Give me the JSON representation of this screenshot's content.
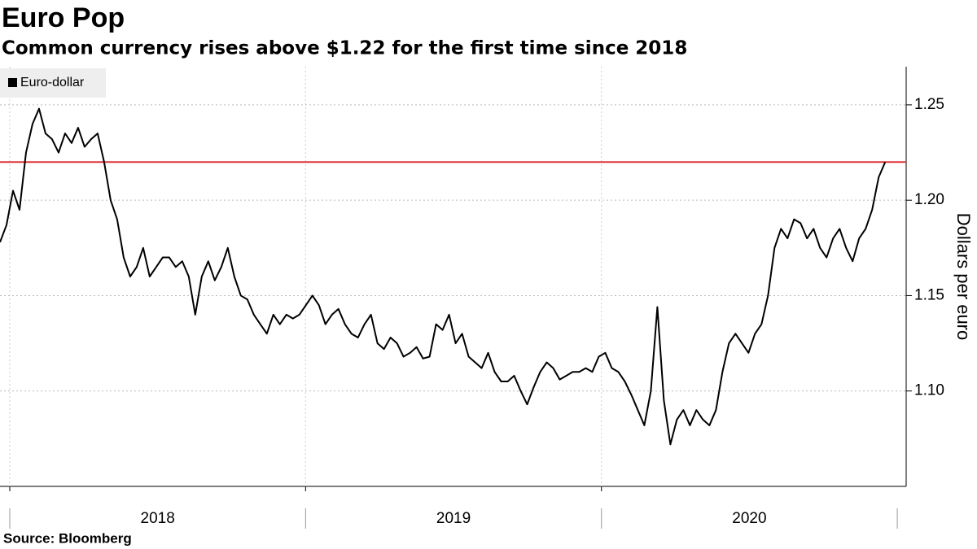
{
  "chart_data": {
    "type": "line",
    "title": "Euro Pop",
    "subtitle": "Common currency rises above $1.22 for the first time since 2018",
    "source": "Source: Bloomberg",
    "y_label": "Dollars per euro",
    "legend": "upper left",
    "grid": true,
    "xlim": [
      2017.967,
      2021.03
    ],
    "ylim": [
      1.05,
      1.27
    ],
    "yticks": [
      {
        "value": 1.1,
        "label": "1.10"
      },
      1.15,
      {
        "value": 1.2,
        "label": "1.20"
      },
      1.25
    ],
    "xticks": [
      {
        "value": 2018,
        "label": "2018"
      },
      {
        "value": 2019,
        "label": "2019"
      },
      {
        "value": 2020,
        "label": "2020"
      }
    ],
    "reference_line": {
      "value": 1.22,
      "color": "#e0353b"
    },
    "x": [
      2017.967,
      2017.989,
      2018.011,
      2018.033,
      2018.055,
      2018.077,
      2018.099,
      2018.121,
      2018.143,
      2018.165,
      2018.187,
      2018.209,
      2018.231,
      2018.253,
      2018.275,
      2018.297,
      2018.319,
      2018.341,
      2018.363,
      2018.385,
      2018.407,
      2018.429,
      2018.451,
      2018.473,
      2018.495,
      2018.517,
      2018.539,
      2018.561,
      2018.583,
      2018.605,
      2018.627,
      2018.649,
      2018.671,
      2018.693,
      2018.715,
      2018.737,
      2018.759,
      2018.781,
      2018.803,
      2018.825,
      2018.847,
      2018.869,
      2018.891,
      2018.913,
      2018.935,
      2018.957,
      2018.979,
      2019.001,
      2019.023,
      2019.045,
      2019.067,
      2019.089,
      2019.111,
      2019.133,
      2019.155,
      2019.177,
      2019.199,
      2019.221,
      2019.243,
      2019.265,
      2019.287,
      2019.309,
      2019.331,
      2019.353,
      2019.375,
      2019.397,
      2019.419,
      2019.441,
      2019.463,
      2019.485,
      2019.507,
      2019.529,
      2019.551,
      2019.573,
      2019.595,
      2019.617,
      2019.639,
      2019.661,
      2019.683,
      2019.705,
      2019.727,
      2019.749,
      2019.771,
      2019.793,
      2019.815,
      2019.837,
      2019.859,
      2019.881,
      2019.903,
      2019.925,
      2019.947,
      2019.969,
      2019.991,
      2020.013,
      2020.035,
      2020.057,
      2020.079,
      2020.101,
      2020.123,
      2020.145,
      2020.167,
      2020.189,
      2020.211,
      2020.233,
      2020.255,
      2020.277,
      2020.299,
      2020.321,
      2020.343,
      2020.365,
      2020.387,
      2020.409,
      2020.431,
      2020.453,
      2020.475,
      2020.497,
      2020.519,
      2020.541,
      2020.563,
      2020.585,
      2020.607,
      2020.629,
      2020.651,
      2020.673,
      2020.695,
      2020.717,
      2020.739,
      2020.761,
      2020.783,
      2020.805,
      2020.827,
      2020.849,
      2020.871,
      2020.893,
      2020.915,
      2020.937,
      2020.959
    ],
    "series": [
      {
        "name": "Euro-dollar",
        "color": "#000000",
        "values": [
          1.178,
          1.187,
          1.205,
          1.195,
          1.225,
          1.24,
          1.248,
          1.235,
          1.232,
          1.225,
          1.235,
          1.23,
          1.238,
          1.228,
          1.232,
          1.235,
          1.22,
          1.2,
          1.19,
          1.17,
          1.16,
          1.165,
          1.175,
          1.16,
          1.165,
          1.17,
          1.17,
          1.165,
          1.168,
          1.16,
          1.14,
          1.16,
          1.168,
          1.158,
          1.165,
          1.175,
          1.16,
          1.15,
          1.148,
          1.14,
          1.135,
          1.13,
          1.14,
          1.135,
          1.14,
          1.138,
          1.14,
          1.145,
          1.15,
          1.145,
          1.135,
          1.14,
          1.143,
          1.135,
          1.13,
          1.128,
          1.135,
          1.14,
          1.125,
          1.122,
          1.128,
          1.125,
          1.118,
          1.12,
          1.123,
          1.117,
          1.118,
          1.135,
          1.132,
          1.14,
          1.125,
          1.13,
          1.118,
          1.115,
          1.112,
          1.12,
          1.11,
          1.105,
          1.105,
          1.108,
          1.1,
          1.093,
          1.102,
          1.11,
          1.115,
          1.112,
          1.106,
          1.108,
          1.11,
          1.11,
          1.112,
          1.11,
          1.118,
          1.12,
          1.112,
          1.11,
          1.105,
          1.098,
          1.09,
          1.082,
          1.1,
          1.144,
          1.095,
          1.072,
          1.085,
          1.09,
          1.082,
          1.09,
          1.085,
          1.082,
          1.09,
          1.11,
          1.125,
          1.13,
          1.125,
          1.12,
          1.13,
          1.135,
          1.15,
          1.175,
          1.185,
          1.18,
          1.19,
          1.188,
          1.18,
          1.185,
          1.175,
          1.17,
          1.18,
          1.185,
          1.175,
          1.168,
          1.18,
          1.185,
          1.195,
          1.212,
          1.22
        ]
      }
    ]
  }
}
